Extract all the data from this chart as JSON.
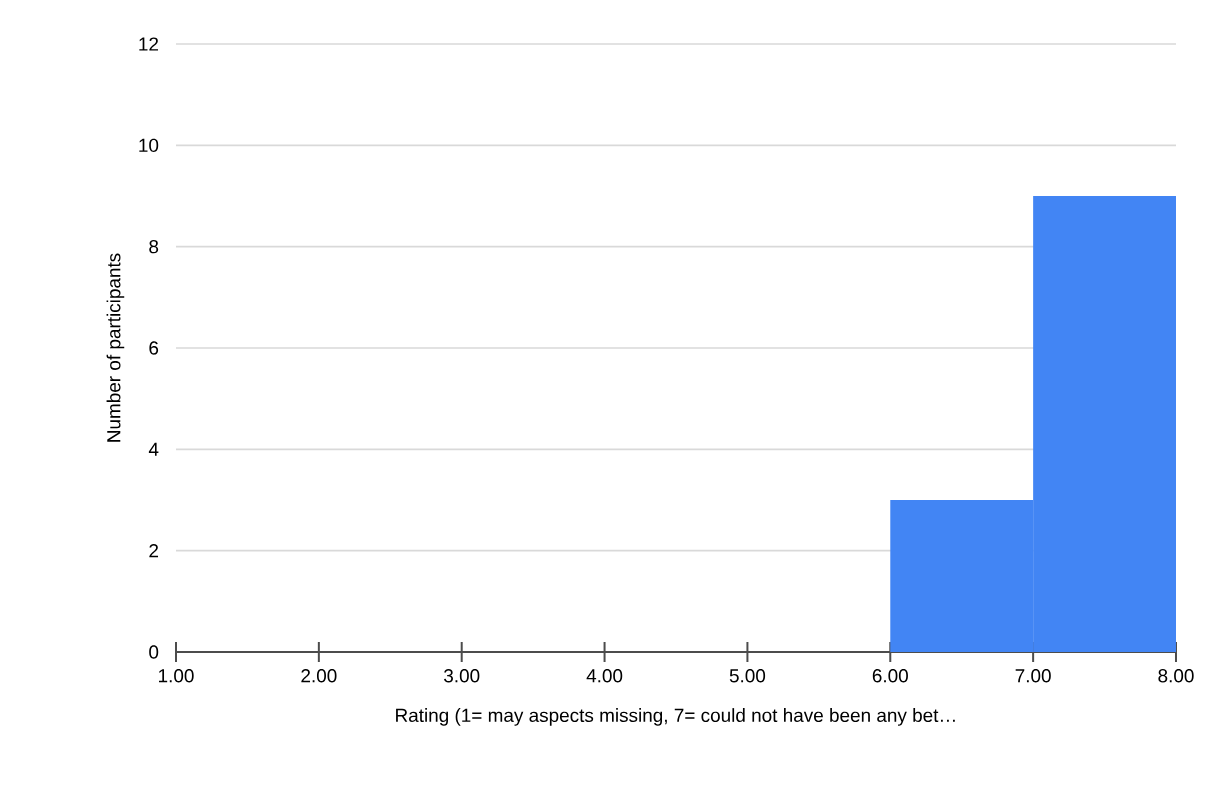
{
  "chart_data": {
    "type": "histogram",
    "xlabel": "Rating (1= may aspects missing, 7= could not have been any bet…",
    "ylabel": "Number of participants",
    "bins": [
      1,
      2,
      3,
      4,
      5,
      6,
      7,
      8
    ],
    "values": [
      0,
      0,
      0,
      0,
      0,
      3,
      9
    ],
    "color": "#4285f4",
    "xlim": [
      1,
      8
    ],
    "xticks": [
      {
        "value": 1,
        "label": "1.00"
      },
      {
        "value": 2,
        "label": "2.00"
      },
      {
        "value": 3,
        "label": "3.00"
      },
      {
        "value": 4,
        "label": "4.00"
      },
      {
        "value": 5,
        "label": "5.00"
      },
      {
        "value": 6,
        "label": "6.00"
      },
      {
        "value": 7,
        "label": "7.00"
      },
      {
        "value": 8,
        "label": "8.00"
      }
    ],
    "ylim": [
      0,
      12
    ],
    "yticks": [
      0,
      2,
      4,
      6,
      8,
      10,
      12
    ],
    "grid": "y"
  }
}
